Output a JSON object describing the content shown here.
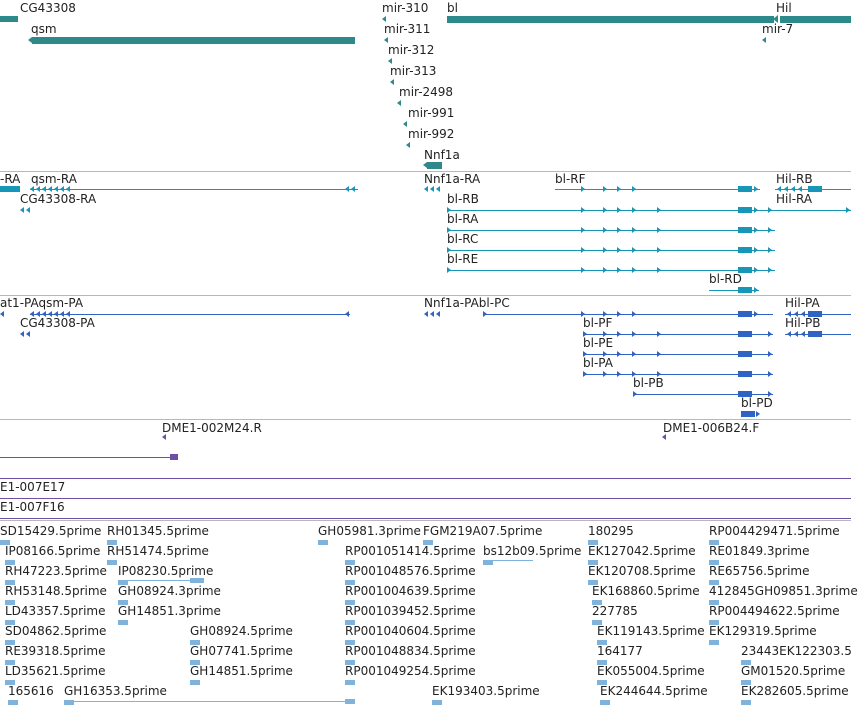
{
  "colors": {
    "gene": "#2e8a8a",
    "transcript": "#1796b8",
    "protein": "#2f63c4",
    "clone": "#6f4ea5",
    "cdna": "#7fb3dc",
    "separator": "#b8b8b8",
    "text": "#222222"
  },
  "tracks": {
    "genes": [
      "CG43308",
      "qsm",
      "mir-310",
      "mir-311",
      "mir-312",
      "mir-313",
      "mir-2498",
      "mir-991",
      "mir-992",
      "Nnf1a",
      "bl",
      "Hil",
      "mir-7"
    ],
    "transcripts": [
      "-RA",
      "qsm-RA",
      "CG43308-RA",
      "Nnf1a-RA",
      "bl-RF",
      "Hil-RB",
      "bl-RB",
      "Hil-RA",
      "bl-RA",
      "bl-RC",
      "bl-RE",
      "bl-RD"
    ],
    "proteins": [
      "at1-PAqsm-PA",
      "CG43308-PA",
      "Nnf1a-PAbl-PC",
      "Hil-PA",
      "bl-PF",
      "Hil-PB",
      "bl-PE",
      "bl-PA",
      "bl-PB",
      "bl-PD"
    ],
    "clones": [
      "DME1-002M24.R",
      "DME1-006B24.F",
      "E1-007E17",
      "E1-007F16"
    ],
    "cdnas": [
      "SD15429.5prime",
      "RH01345.5prime",
      "GH05981.3prime",
      "FGM219A07.5prime",
      "180295",
      "RP004429471.5prime",
      "IP08166.5prime",
      "RH51474.5prime",
      "RP001051414.5prime",
      "bs12b09.5prime",
      "EK127042.5prime",
      "RE01849.3prime",
      "RH47223.5prime",
      "IP08230.5prime",
      "RP001048576.5prime",
      "EK120708.5prime",
      "RE65756.5prime",
      "RH53148.5prime",
      "GH08924.3prime",
      "RP001004639.5prime",
      "EK168860.5prime",
      "412845GH09851.3prime",
      "LD43357.5prime",
      "GH14851.3prime",
      "RP001039452.5prime",
      "227785",
      "RP004494622.5prime",
      "SD04862.5prime",
      "GH08924.5prime",
      "RP001040604.5prime",
      "EK119143.5prime",
      "EK129319.5prime",
      "RE39318.5prime",
      "GH07741.5prime",
      "RP001048834.5prime",
      "164177",
      "23443EK122303.5",
      "LD35621.5prime",
      "GH14851.5prime",
      "RP001049254.5prime",
      "EK055004.5prime",
      "GM01520.5prime",
      "165616",
      "GH16353.5prime",
      "EK193403.5prime",
      "EK244644.5prime",
      "EK282605.5prime"
    ]
  }
}
